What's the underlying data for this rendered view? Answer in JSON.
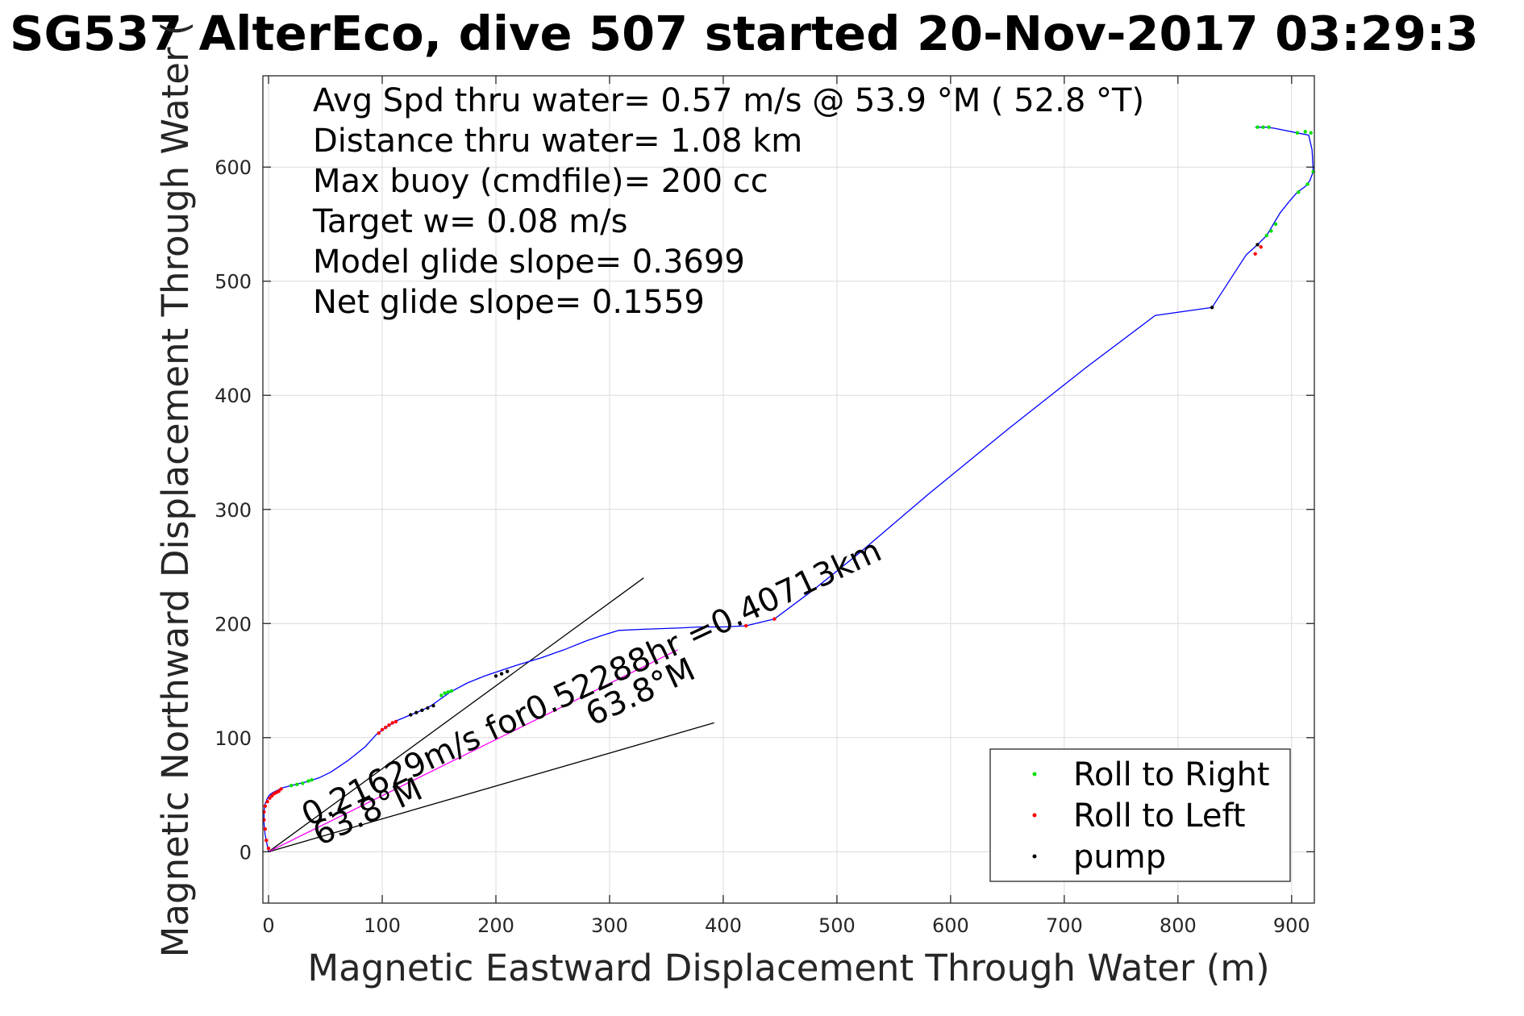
{
  "chart_data": {
    "type": "line",
    "title": "SG537 AlterEco, dive 507 started 20-Nov-2017 03:29:3",
    "xlabel": "Magnetic Eastward Displacement Through Water (m)",
    "ylabel": "Magnetic Northward Displacement Through Water (",
    "xlim": [
      -5,
      920
    ],
    "ylim": [
      -45,
      680
    ],
    "xticks": [
      0,
      100,
      200,
      300,
      400,
      500,
      600,
      700,
      800,
      900
    ],
    "yticks": [
      0,
      100,
      200,
      300,
      400,
      500,
      600
    ],
    "grid": true,
    "legend_position": "bottom-right",
    "info_lines": [
      "Avg Spd thru water=  0.57 m/s @  53.9 °M ( 52.8 °T)",
      "Distance thru water=  1.08 km",
      "Max buoy (cmdfile)= 200 cc",
      "Target w= 0.08 m/s",
      "Model glide slope= 0.3699",
      "Net glide slope= 0.1559"
    ],
    "track": {
      "color": "#0000ff",
      "x": [
        0,
        -1,
        -3,
        -4,
        -4,
        -3,
        -1,
        1,
        4,
        8,
        12,
        20,
        28,
        36,
        45,
        55,
        70,
        85,
        95,
        105,
        113,
        125,
        135,
        143,
        150,
        160,
        175,
        190,
        205,
        220,
        240,
        260,
        280,
        295,
        308,
        330,
        360,
        380,
        400,
        420,
        445,
        480,
        520,
        580,
        650,
        720,
        780,
        830,
        845,
        860,
        870,
        878,
        884,
        890,
        898,
        905,
        912,
        916,
        919,
        918,
        915,
        905,
        885,
        878,
        872,
        868
      ],
      "y": [
        0,
        5,
        15,
        25,
        35,
        42,
        47,
        50,
        52,
        54,
        56,
        58,
        60,
        62,
        65,
        70,
        80,
        92,
        103,
        110,
        115,
        120,
        124,
        128,
        133,
        140,
        148,
        154,
        159,
        164,
        170,
        177,
        185,
        190,
        194,
        195,
        196,
        197,
        197,
        198,
        204,
        230,
        262,
        313,
        370,
        425,
        470,
        477,
        500,
        523,
        532,
        540,
        550,
        560,
        570,
        578,
        583,
        588,
        596,
        615,
        628,
        630,
        634,
        635,
        635,
        635
      ]
    },
    "series": [
      {
        "name": "Roll to Right",
        "color": "#00e000",
        "x": [
          20,
          25,
          30,
          35,
          38,
          152,
          155,
          158,
          161,
          870,
          875,
          880,
          905,
          912,
          917,
          919,
          914,
          906,
          878,
          882,
          886
        ],
        "y": [
          58,
          59,
          60,
          62,
          63,
          137,
          139,
          140,
          141,
          635,
          635,
          635,
          630,
          631,
          630,
          596,
          585,
          578,
          540,
          544,
          550
        ]
      },
      {
        "name": "Roll to Left",
        "color": "#ff0000",
        "x": [
          -3,
          -4,
          -4,
          -3,
          -1,
          1,
          3,
          5,
          7,
          9,
          11,
          97,
          100,
          103,
          106,
          109,
          112,
          420,
          445,
          868,
          873,
          0,
          -2
        ],
        "y": [
          20,
          28,
          35,
          40,
          44,
          47,
          49,
          51,
          52,
          53,
          55,
          104,
          107,
          109,
          111,
          113,
          114,
          198,
          204,
          524,
          530,
          3,
          10
        ]
      },
      {
        "name": "pump",
        "color": "#000000",
        "x": [
          125,
          130,
          135,
          140,
          145,
          200,
          205,
          210,
          830,
          870
        ],
        "y": [
          120,
          122,
          124,
          126,
          128,
          154,
          156,
          158,
          477,
          532
        ]
      }
    ],
    "lines": [
      {
        "name": "upper-bound-line",
        "color": "#000000",
        "x": [
          0,
          330
        ],
        "y": [
          0,
          240
        ]
      },
      {
        "name": "lower-bound-line",
        "color": "#000000",
        "x": [
          0,
          392
        ],
        "y": [
          0,
          113
        ]
      },
      {
        "name": "current-vector-line",
        "color": "#ff00ff",
        "x": [
          0,
          360
        ],
        "y": [
          0,
          177
        ]
      }
    ],
    "annotations": [
      {
        "text": "0.21629m/s for0.52288hr =0.40713km",
        "x": 35,
        "y": 22,
        "angle": 25
      },
      {
        "text": "63.8°M",
        "x": 45,
        "y": 5,
        "angle": 25
      },
      {
        "text": "63.8°M",
        "x": 285,
        "y": 110,
        "angle": 25
      }
    ]
  }
}
